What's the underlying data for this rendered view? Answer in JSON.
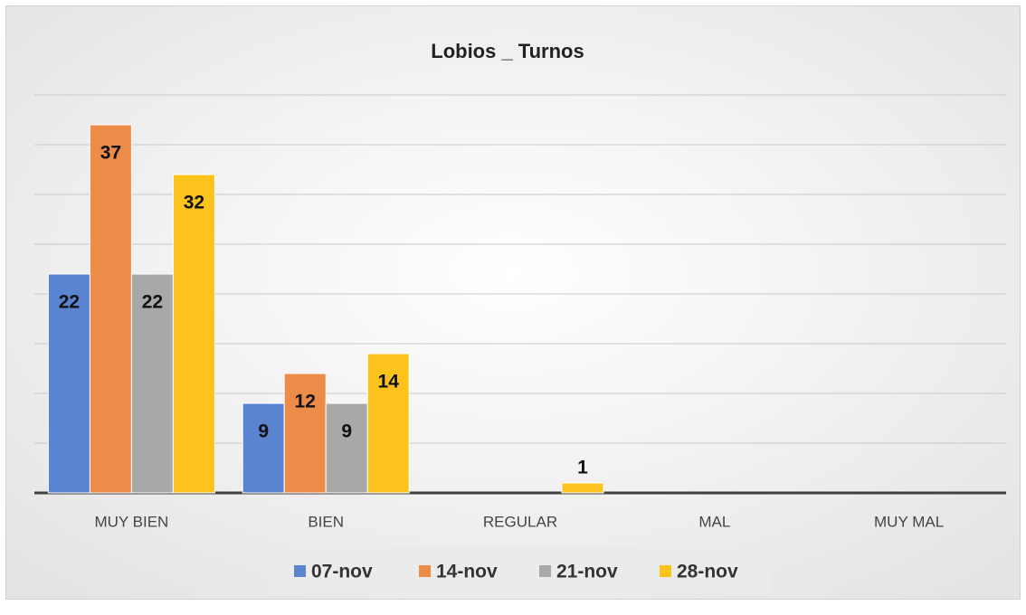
{
  "chart_data": {
    "type": "bar",
    "title": "Lobios _ Turnos",
    "categories": [
      "MUY BIEN",
      "BIEN",
      "REGULAR",
      "MAL",
      "MUY MAL"
    ],
    "series": [
      {
        "name": "07-nov",
        "color": "#5b84d0",
        "values": [
          22,
          9,
          null,
          null,
          null
        ]
      },
      {
        "name": "14-nov",
        "color": "#ed8c48",
        "values": [
          37,
          12,
          null,
          null,
          null
        ]
      },
      {
        "name": "21-nov",
        "color": "#a8a8a8",
        "values": [
          22,
          9,
          null,
          null,
          null
        ]
      },
      {
        "name": "28-nov",
        "color": "#fbc31c",
        "values": [
          32,
          14,
          1,
          null,
          null
        ]
      }
    ],
    "ylim": [
      0,
      40
    ],
    "yticks": [
      0,
      5,
      10,
      15,
      20,
      25,
      30,
      35,
      40
    ],
    "grid": true,
    "legend": "bottom"
  }
}
